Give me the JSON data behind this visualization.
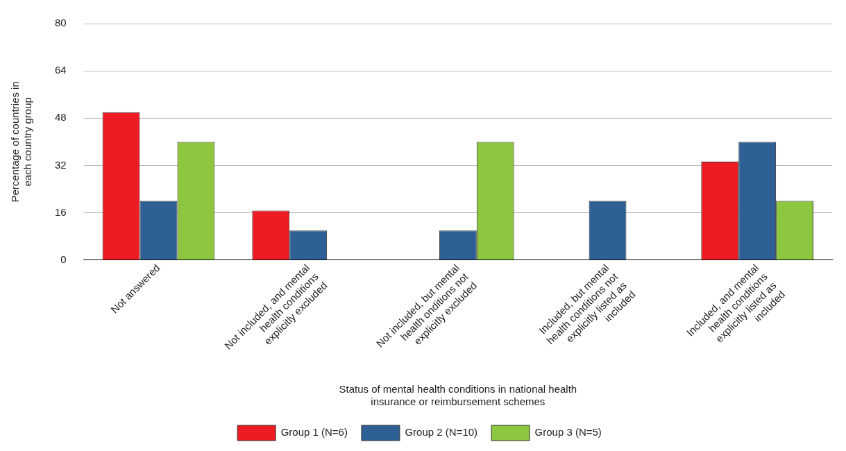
{
  "chart_data": {
    "type": "bar",
    "xlabel": "Status of mental health conditions in national health insurance or reimbursement schemes",
    "ylabel": "Percentage of countries in each country group",
    "categories": [
      "Not answered",
      "Not included, and mental health conditions explicitly excluded",
      "Not included, but mental health onditions not explicitly excluded",
      "Included, but mental health conditions not explicitly listed as included",
      "Included, and mental health conditions explicitly listed as included"
    ],
    "series": [
      {
        "name": "Group 1 (N=6)",
        "color": "#ed1c24",
        "values": [
          50,
          16.7,
          0,
          0,
          33.3
        ]
      },
      {
        "name": "Group 2 (N=10)",
        "color": "#2e6095",
        "values": [
          20,
          10,
          10,
          20,
          40
        ]
      },
      {
        "name": "Group 3 (N=5)",
        "color": "#8dc63f",
        "values": [
          40,
          0,
          40,
          0,
          20
        ]
      }
    ],
    "ylim": [
      0,
      80
    ],
    "yticks": [
      0,
      16,
      32,
      48,
      64,
      80
    ],
    "grid": "y",
    "legend": "bottom"
  }
}
